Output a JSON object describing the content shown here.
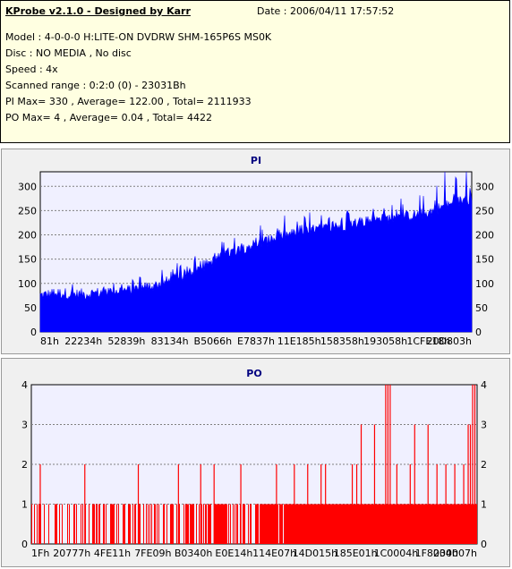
{
  "header": {
    "app_title": "KProbe v2.1.0 - Designed by Karr",
    "date": "Date : 2006/04/11 17:57:52",
    "lines": [
      "Model : 4-0-0-0 H:LITE-ON DVDRW SHM-165P6S MS0K",
      "Disc : NO MEDIA , No disc",
      "Speed : 4x",
      "Scanned range : 0:2:0 (0) - 23031Bh",
      "PI Max= 330 , Average= 122.00 , Total= 2111933",
      "PO Max= 4 , Average= 0.04 , Total= 4422"
    ]
  },
  "colors": {
    "pi": "#0000ff",
    "po": "#ff0000",
    "grid": "#808080",
    "plot_bg": "#f0f0ff"
  },
  "chart_data": [
    {
      "type": "area",
      "title": "PI",
      "xlabel": "",
      "ylabel": "",
      "x_tick_labels": [
        "81h",
        "22234h",
        "52839h",
        "83134h",
        "B5066h",
        "E7837h",
        "11E185h",
        "158358h",
        "193058h",
        "1CFE18h",
        "20D803h"
      ],
      "ylim": [
        0,
        330
      ],
      "y_ticks": [
        0,
        50,
        100,
        150,
        200,
        250,
        300
      ],
      "grid": true,
      "series": [
        {
          "values": [
            75,
            78,
            80,
            77,
            78,
            80,
            82,
            85,
            86,
            90,
            94,
            100,
            107,
            117,
            127,
            138,
            150,
            162,
            170,
            178,
            184,
            190,
            198,
            202,
            207,
            211,
            214,
            218,
            222,
            226,
            230,
            232,
            236,
            238,
            241,
            245,
            255,
            262,
            270,
            275
          ],
          "peaks": [
            10,
            14,
            20,
            30,
            22,
            30,
            18,
            27,
            20,
            24,
            27,
            30,
            35,
            32,
            27,
            25,
            30,
            36,
            36,
            40,
            34,
            38,
            32,
            38,
            30,
            36,
            36,
            27,
            34,
            36,
            36,
            38,
            46,
            40,
            46,
            50,
            86,
            73,
            55,
            55
          ]
        }
      ]
    },
    {
      "type": "bar",
      "title": "PO",
      "xlabel": "",
      "ylabel": "",
      "x_tick_labels": [
        "1Fh",
        "20777h",
        "4FE11h",
        "7FE09h",
        "B0340h",
        "E0E14h",
        "114E07h",
        "14D015h",
        "185E01h",
        "1C0004h",
        "1F8004h",
        "230007h"
      ],
      "ylim": [
        0,
        4
      ],
      "y_ticks": [
        0,
        1,
        2,
        3,
        4
      ],
      "grid": true,
      "series": [
        {
          "baseline_density": [
            0.35,
            0.4,
            0.4,
            0.4,
            0.45,
            0.45,
            0.5,
            0.55,
            0.6,
            0.7,
            0.8,
            0.95,
            1.0,
            1.0,
            1.0,
            1.0,
            1.0,
            1.0,
            1.0,
            1.0
          ],
          "spikes": [
            [
              0.02,
              2
            ],
            [
              0.12,
              2
            ],
            [
              0.24,
              2
            ],
            [
              0.33,
              2
            ],
            [
              0.38,
              2
            ],
            [
              0.41,
              2
            ],
            [
              0.47,
              2
            ],
            [
              0.55,
              2
            ],
            [
              0.59,
              2
            ],
            [
              0.62,
              2
            ],
            [
              0.65,
              2
            ],
            [
              0.66,
              2
            ],
            [
              0.72,
              2
            ],
            [
              0.73,
              2
            ],
            [
              0.74,
              3
            ],
            [
              0.77,
              3
            ],
            [
              0.795,
              4
            ],
            [
              0.8,
              4
            ],
            [
              0.805,
              4
            ],
            [
              0.82,
              2
            ],
            [
              0.85,
              2
            ],
            [
              0.86,
              3
            ],
            [
              0.89,
              3
            ],
            [
              0.91,
              2
            ],
            [
              0.93,
              2
            ],
            [
              0.95,
              2
            ],
            [
              0.97,
              2
            ],
            [
              0.98,
              3
            ],
            [
              0.985,
              3
            ],
            [
              0.99,
              4
            ],
            [
              0.995,
              4
            ]
          ]
        }
      ]
    }
  ]
}
